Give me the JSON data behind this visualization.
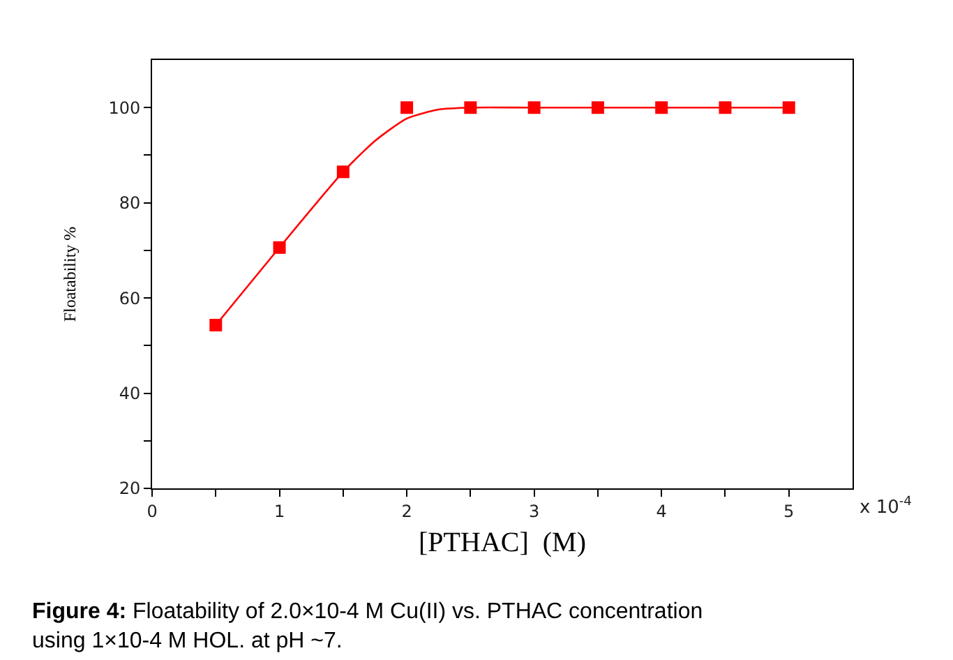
{
  "chart_data": {
    "type": "scatter",
    "xlabel": "[PTHAC]  (M)",
    "ylabel": "Floatability %",
    "xlim": [
      0,
      5.5
    ],
    "xticks": [
      0,
      {
        "value": 0.5,
        "label": null
      },
      1,
      {
        "value": 1.5,
        "label": null
      },
      2,
      {
        "value": 2.5,
        "label": null
      },
      3,
      {
        "value": 3.5,
        "label": null
      },
      4,
      {
        "value": 4.5,
        "label": null
      },
      5
    ],
    "ylim": [
      20,
      110
    ],
    "yticks": [
      20,
      {
        "value": 30,
        "label": null
      },
      40,
      {
        "value": 50,
        "label": null
      },
      60,
      {
        "value": 70,
        "label": null
      },
      80,
      {
        "value": 90,
        "label": null
      },
      100
    ],
    "series": [
      {
        "color": "#ff0000",
        "marker": "square",
        "x": [
          0.5,
          1,
          1.5,
          2,
          2.5,
          3,
          3.5,
          4,
          4.5,
          5
        ],
        "values": [
          54.3,
          70.6,
          86.5,
          100,
          100,
          100,
          100,
          100,
          100,
          100
        ]
      },
      {
        "type": "line",
        "color": "#ff0000",
        "marker": "none",
        "line_style": "solid",
        "x": [
          0.5,
          1,
          1.5,
          1.75,
          2,
          2.25,
          2.5,
          3,
          5
        ],
        "values": [
          54.3,
          70.6,
          86.5,
          93,
          97.7,
          99.6,
          100,
          100,
          100
        ]
      }
    ],
    "annotations": [
      "x 10$^{-4}$",
      "Figure 4: Floatability of 2.0×10-4 M Cu(II) vs. PTHAC concentration using 1×10-4 M HOL. at pH ~7."
    ]
  }
}
